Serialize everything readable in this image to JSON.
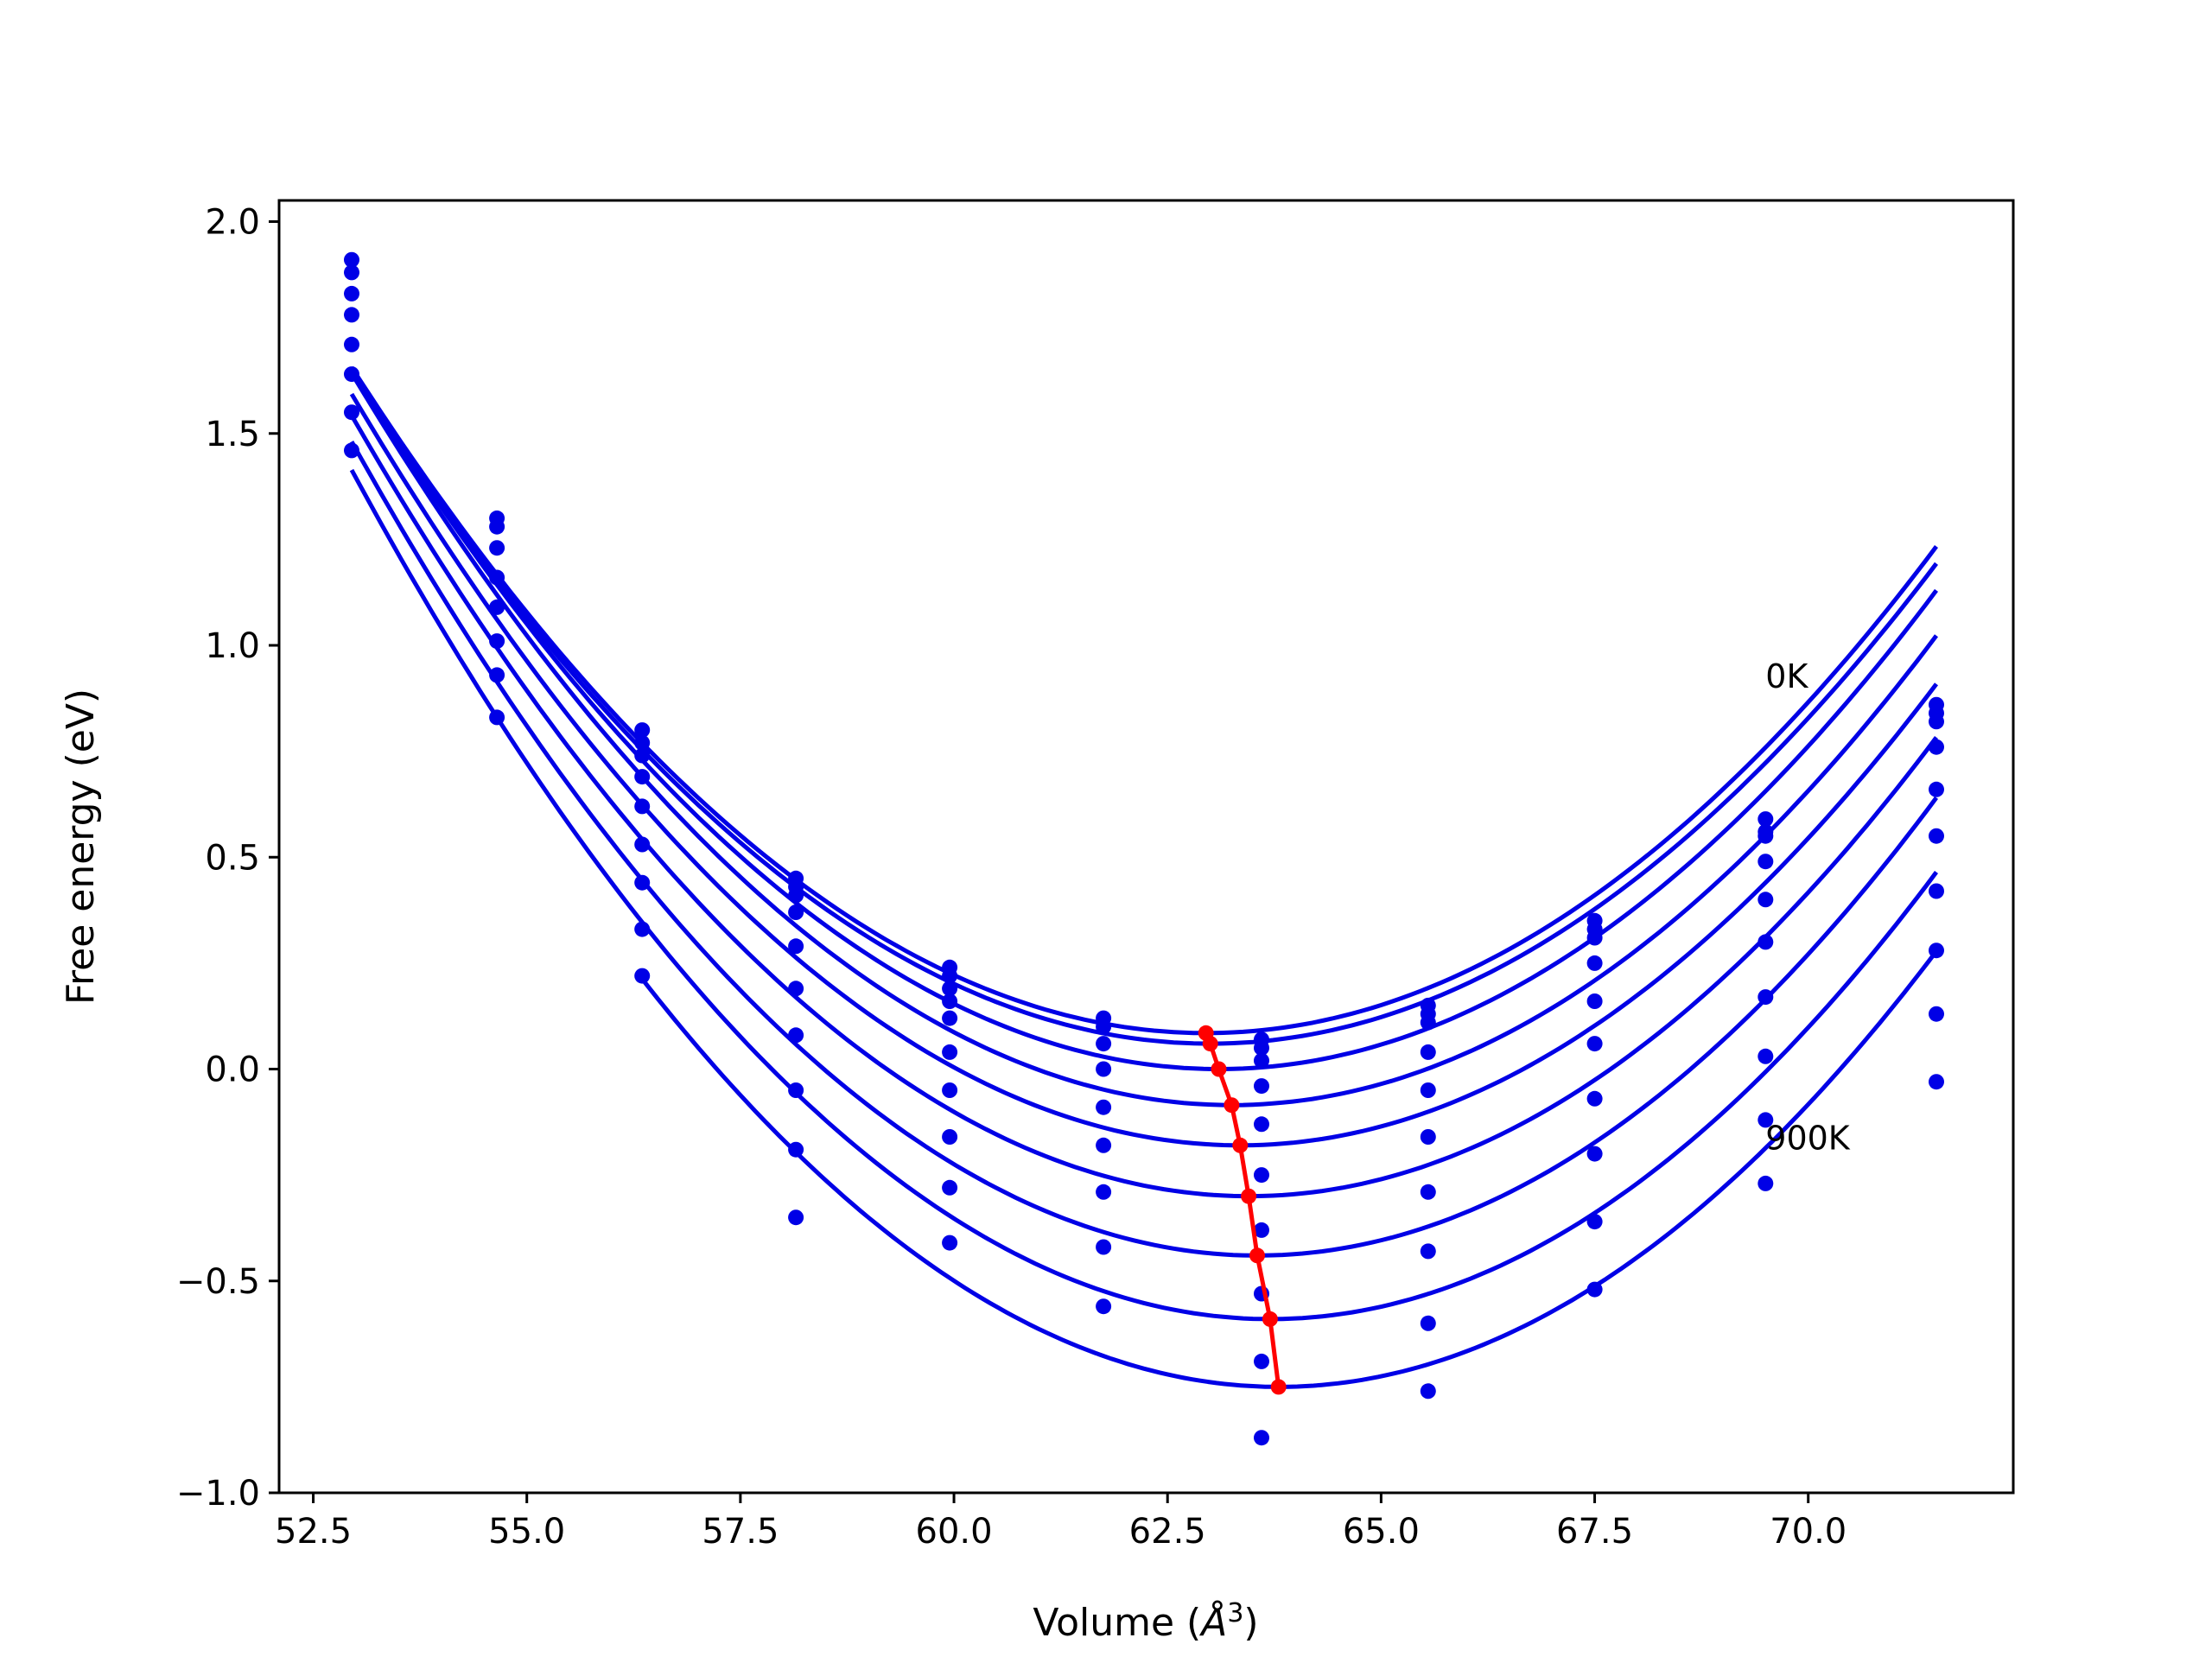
{
  "chart_data": {
    "type": "line",
    "title": "",
    "xlabel": "Volume (Å³)",
    "xlabel_main": "Volume (",
    "xlabel_symbol": "Å",
    "xlabel_sup": "3",
    "xlabel_close": ")",
    "ylabel": "Free energy (eV)",
    "xlim": [
      52.1,
      72.4
    ],
    "ylim": [
      -1.0,
      2.05
    ],
    "grid": false,
    "legend": "none",
    "x_ticks": [
      52.5,
      55.0,
      57.5,
      60.0,
      62.5,
      65.0,
      67.5,
      70.0
    ],
    "x_tick_labels": [
      "52.5",
      "55.0",
      "57.5",
      "60.0",
      "62.5",
      "65.0",
      "67.5",
      "70.0"
    ],
    "y_ticks": [
      -1.0,
      -0.5,
      0.0,
      0.5,
      1.0,
      1.5,
      2.0
    ],
    "y_tick_labels": [
      "−1.0",
      "−0.5",
      "0.0",
      "0.5",
      "1.0",
      "1.5",
      "2.0"
    ],
    "annotations": [
      {
        "text": "0K",
        "x": 69.5,
        "y": 0.9
      },
      {
        "text": "900K",
        "x": 69.5,
        "y": -0.19
      }
    ],
    "sample_volumes": [
      52.95,
      54.65,
      56.35,
      58.15,
      59.95,
      61.75,
      63.6,
      65.55,
      67.5,
      69.5,
      71.5
    ],
    "isotherms": [
      {
        "fit_min": [
          62.95,
          0.085
        ],
        "points": [
          1.91,
          1.3,
          0.8,
          0.45,
          0.24,
          0.12,
          0.07,
          0.15,
          0.35,
          0.59,
          0.86
        ]
      },
      {
        "fit_min": [
          63.0,
          0.06
        ],
        "points": [
          1.88,
          1.28,
          0.77,
          0.43,
          0.22,
          0.1,
          0.05,
          0.13,
          0.33,
          0.56,
          0.84
        ]
      },
      {
        "fit_min": [
          63.1,
          0.0
        ],
        "points": [
          1.83,
          1.23,
          0.74,
          0.41,
          0.19,
          0.06,
          0.02,
          0.11,
          0.31,
          0.55,
          0.82
        ]
      },
      {
        "fit_min": [
          63.25,
          -0.085
        ],
        "points": [
          1.78,
          1.16,
          0.69,
          0.37,
          0.16,
          0.0,
          -0.04,
          0.04,
          0.25,
          0.49,
          0.76
        ]
      },
      {
        "fit_min": [
          63.35,
          -0.18
        ],
        "points": [
          1.71,
          1.09,
          0.62,
          0.29,
          0.12,
          -0.09,
          -0.13,
          -0.05,
          0.16,
          0.4,
          0.66
        ]
      },
      {
        "fit_min": [
          63.45,
          -0.3
        ],
        "points": [
          1.64,
          1.01,
          0.53,
          0.19,
          0.04,
          -0.18,
          -0.25,
          -0.16,
          0.06,
          0.3,
          0.55
        ]
      },
      {
        "fit_min": [
          63.55,
          -0.44
        ],
        "points": [
          1.55,
          0.93,
          0.44,
          0.08,
          -0.05,
          -0.29,
          -0.38,
          -0.29,
          -0.07,
          0.17,
          0.42
        ]
      },
      {
        "fit_min": [
          63.7,
          -0.59
        ],
        "points": [
          1.46,
          0.83,
          0.33,
          -0.05,
          -0.16,
          -0.42,
          -0.53,
          -0.43,
          -0.2,
          0.03,
          0.28
        ]
      },
      {
        "fit_min": [
          63.8,
          -0.75
        ],
        "points": [
          null,
          null,
          0.22,
          -0.19,
          -0.28,
          -0.56,
          -0.69,
          -0.6,
          -0.36,
          -0.12,
          0.13
        ]
      },
      {
        "fit_min": null,
        "points": [
          null,
          null,
          null,
          -0.35,
          -0.41,
          null,
          -0.87,
          -0.76,
          -0.52,
          -0.27,
          -0.03
        ]
      }
    ],
    "minimum_curve": {
      "x": [
        62.95,
        63.0,
        63.1,
        63.25,
        63.35,
        63.45,
        63.55,
        63.7,
        63.8
      ],
      "y": [
        0.085,
        0.06,
        0.0,
        -0.085,
        -0.18,
        -0.3,
        -0.44,
        -0.59,
        -0.75
      ]
    },
    "colors": {
      "isotherm": "#0000e6",
      "minimum": "#ff0000",
      "axes": "#000000"
    }
  }
}
